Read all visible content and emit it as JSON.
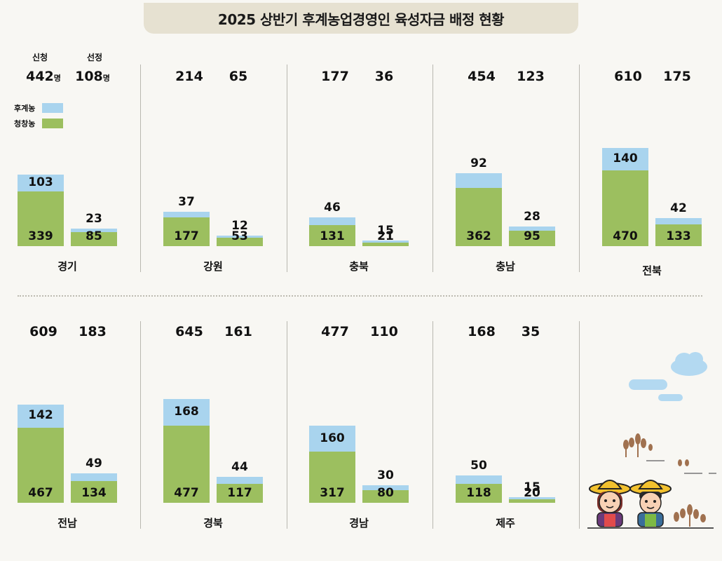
{
  "title": "2025 상반기 후계농업경영인 육성자금 배정 현황",
  "headers": {
    "applied": "신청",
    "selected": "선정",
    "unit": "명"
  },
  "legend": [
    {
      "label": "후계농",
      "color": "#a9d4ee"
    },
    {
      "label": "청창농",
      "color": "#9cbf5f"
    }
  ],
  "colors": {
    "successor": "#a9d4ee",
    "youth": "#9cbf5f"
  },
  "chart_data": {
    "type": "bar",
    "stacked": true,
    "series": [
      {
        "name": "후계농",
        "key": "successor"
      },
      {
        "name": "청창농",
        "key": "youth"
      }
    ],
    "regions": [
      {
        "name": "경기",
        "applied": 442,
        "selected": 108,
        "applied_bar": {
          "youth": 339,
          "successor": 103
        },
        "selected_bar": {
          "youth": 85,
          "successor": 23
        }
      },
      {
        "name": "강원",
        "applied": 214,
        "selected": 65,
        "applied_bar": {
          "youth": 177,
          "successor": 37
        },
        "selected_bar": {
          "youth": 53,
          "successor": 12
        }
      },
      {
        "name": "충북",
        "applied": 177,
        "selected": 36,
        "applied_bar": {
          "youth": 131,
          "successor": 46
        },
        "selected_bar": {
          "youth": 21,
          "successor": 15
        }
      },
      {
        "name": "충남",
        "applied": 454,
        "selected": 123,
        "applied_bar": {
          "youth": 362,
          "successor": 92
        },
        "selected_bar": {
          "youth": 95,
          "successor": 28
        }
      },
      {
        "name": "전북",
        "applied": 610,
        "selected": 175,
        "applied_bar": {
          "youth": 470,
          "successor": 140
        },
        "selected_bar": {
          "youth": 133,
          "successor": 42
        }
      },
      {
        "name": "전남",
        "applied": 609,
        "selected": 183,
        "applied_bar": {
          "youth": 467,
          "successor": 142
        },
        "selected_bar": {
          "youth": 134,
          "successor": 49
        }
      },
      {
        "name": "경북",
        "applied": 645,
        "selected": 161,
        "applied_bar": {
          "youth": 477,
          "successor": 168
        },
        "selected_bar": {
          "youth": 117,
          "successor": 44
        }
      },
      {
        "name": "경남",
        "applied": 477,
        "selected": 110,
        "applied_bar": {
          "youth": 317,
          "successor": 160
        },
        "selected_bar": {
          "youth": 80,
          "successor": 30
        }
      },
      {
        "name": "제주",
        "applied": 168,
        "selected": 35,
        "applied_bar": {
          "youth": 118,
          "successor": 50
        },
        "selected_bar": {
          "youth": 20,
          "successor": 15
        }
      }
    ]
  }
}
